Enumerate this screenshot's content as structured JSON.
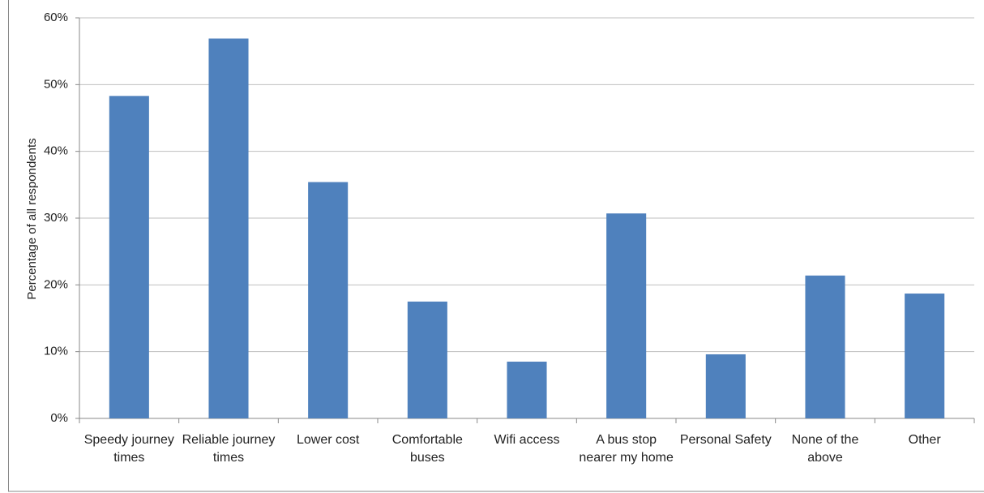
{
  "chart_data": {
    "type": "bar",
    "y_label": "Percentage of all respondents",
    "categories": [
      "Speedy journey times",
      "Reliable journey times",
      "Lower cost",
      "Comfortable buses",
      "Wifi access",
      "A bus stop nearer my home",
      "Personal Safety",
      "None of the above",
      "Other"
    ],
    "values": [
      48.3,
      56.9,
      35.4,
      17.5,
      8.5,
      30.7,
      9.6,
      21.4,
      18.7
    ],
    "color": "#4f81bd",
    "ylim": [
      0,
      60
    ],
    "yticks": [
      {
        "value": 0,
        "label": "0%"
      },
      {
        "value": 10,
        "label": "10%"
      },
      {
        "value": 20,
        "label": "20%"
      },
      {
        "value": 30,
        "label": "30%"
      },
      {
        "value": 40,
        "label": "40%"
      },
      {
        "value": 50,
        "label": "50%"
      },
      {
        "value": 60,
        "label": "60%"
      }
    ],
    "grid": true
  }
}
